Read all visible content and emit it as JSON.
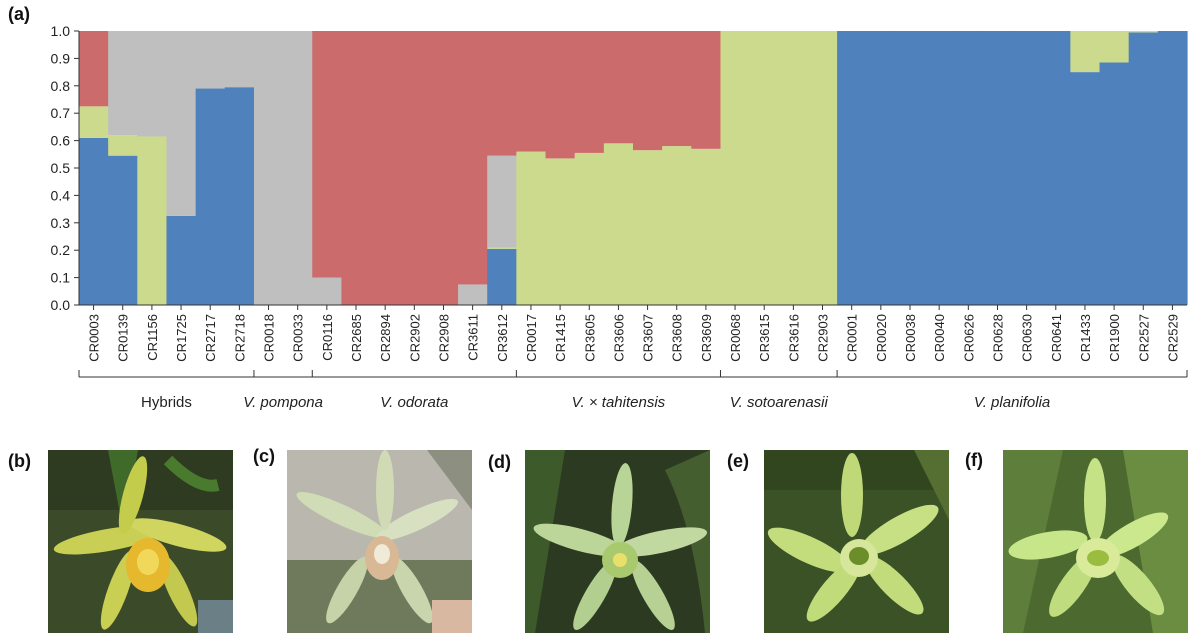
{
  "panel_labels": {
    "a": "(a)",
    "b": "(b)",
    "c": "(c)",
    "d": "(d)",
    "e": "(e)",
    "f": "(f)"
  },
  "colors": {
    "red": "#cc6b6b",
    "gray": "#bfbfbf",
    "green": "#ccda8e",
    "blue": "#4f81bd"
  },
  "chart_data": {
    "type": "bar",
    "stacked": true,
    "ylim": [
      0,
      1
    ],
    "yticks": [
      "0.0",
      "0.1",
      "0.2",
      "0.3",
      "0.4",
      "0.5",
      "0.6",
      "0.7",
      "0.8",
      "0.9",
      "1.0"
    ],
    "categories": [
      "CR0003",
      "CR0139",
      "CR1156",
      "CR1725",
      "CR2717",
      "CR2718",
      "CR0018",
      "CR0033",
      "CR0116",
      "CR2685",
      "CR2894",
      "CR2902",
      "CR2908",
      "CR3611",
      "CR3612",
      "CR0017",
      "CR1415",
      "CR3605",
      "CR3606",
      "CR3607",
      "CR3608",
      "CR3609",
      "CR0068",
      "CR3615",
      "CR3616",
      "CR2903",
      "CR0001",
      "CR0020",
      "CR0038",
      "CR0040",
      "CR0626",
      "CR0628",
      "CR0630",
      "CR0641",
      "CR1433",
      "CR1900",
      "CR2527",
      "CR2529"
    ],
    "series": [
      {
        "color": "blue",
        "values": [
          0.61,
          0.545,
          0,
          0.325,
          0.79,
          0.795,
          0,
          0,
          0,
          0,
          0,
          0,
          0,
          0,
          0.205,
          0,
          0,
          0,
          0,
          0,
          0,
          0,
          0,
          0,
          0,
          0,
          1,
          1,
          1,
          1,
          1,
          1,
          1,
          1,
          0.85,
          0.885,
          0.995,
          1
        ]
      },
      {
        "color": "green",
        "values": [
          0.115,
          0.075,
          0.615,
          0,
          0,
          0,
          0,
          0,
          0,
          0,
          0,
          0,
          0,
          0,
          0.005,
          0.56,
          0.535,
          0.555,
          0.59,
          0.565,
          0.58,
          0.57,
          1,
          1,
          1,
          1,
          0,
          0,
          0,
          0,
          0,
          0,
          0,
          0,
          0.15,
          0.115,
          0.005,
          0
        ]
      },
      {
        "color": "gray",
        "values": [
          0,
          0.38,
          0.385,
          0.675,
          0.21,
          0.205,
          1,
          1,
          0.1,
          0,
          0,
          0,
          0,
          0.075,
          0.335,
          0,
          0,
          0,
          0,
          0,
          0,
          0,
          0,
          0,
          0,
          0,
          0,
          0,
          0,
          0,
          0,
          0,
          0,
          0,
          0,
          0,
          0,
          0
        ]
      },
      {
        "color": "red",
        "values": [
          0.275,
          0,
          0,
          0,
          0,
          0,
          0,
          0,
          0.9,
          1,
          1,
          1,
          1,
          0.925,
          0.455,
          0.44,
          0.465,
          0.445,
          0.41,
          0.435,
          0.42,
          0.43,
          0,
          0,
          0,
          0,
          0,
          0,
          0,
          0,
          0,
          0,
          0,
          0,
          0,
          0,
          0,
          0
        ]
      }
    ],
    "groups": [
      {
        "label": "Hybrids",
        "italic": false,
        "start": 0,
        "end": 5
      },
      {
        "label": "V. pompona",
        "italic": true,
        "start": 6,
        "end": 7
      },
      {
        "label": "V. odorata",
        "italic": true,
        "start": 8,
        "end": 14
      },
      {
        "label": "V. × tahitensis",
        "italic": true,
        "start": 15,
        "end": 21
      },
      {
        "label": "V. sotoarenasii",
        "italic": true,
        "start": 22,
        "end": 25
      },
      {
        "label": "V. planifolia",
        "italic": true,
        "start": 26,
        "end": 37
      }
    ]
  }
}
